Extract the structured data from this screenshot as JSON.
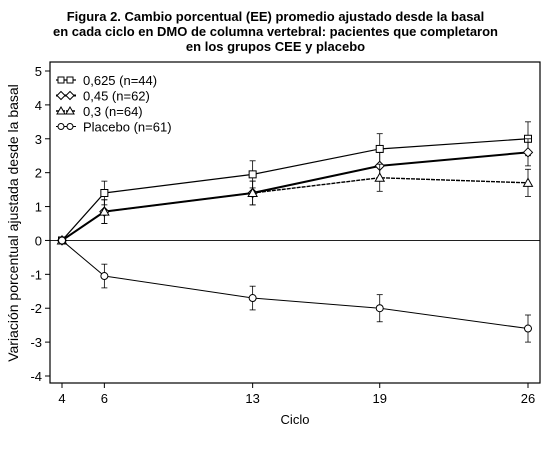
{
  "chart_data": {
    "type": "line",
    "title": [
      "Figura 2. Cambio porcentual (EE) promedio ajustado desde la basal",
      "en cada ciclo en DMO de columna vertebral: pacientes que completaron",
      "en los grupos CEE y placebo"
    ],
    "xlabel": "Ciclo",
    "ylabel": "Variación porcentual ajustada desde la basal",
    "x": [
      4,
      6,
      13,
      19,
      26
    ],
    "x_tick_labels": [
      "4",
      "6",
      "13",
      "19",
      "26"
    ],
    "ylim": [
      -4,
      5
    ],
    "y_ticks": [
      -4,
      -3,
      -2,
      -1,
      0,
      1,
      2,
      3,
      4,
      5
    ],
    "reference_line": 0,
    "grid": false,
    "legend_position": "top-left",
    "series": [
      {
        "name": "0,625 (n=44)",
        "marker": "square",
        "values": [
          0,
          1.4,
          1.95,
          2.7,
          3.0
        ],
        "errors": [
          0,
          0.35,
          0.4,
          0.45,
          0.5
        ]
      },
      {
        "name": "0,45 (n=62)",
        "marker": "diamond",
        "values": [
          0,
          0.85,
          1.4,
          2.2,
          2.6
        ],
        "errors": [
          0,
          0.35,
          0.35,
          0.4,
          0.4
        ]
      },
      {
        "name": "0,3 (n=64)",
        "marker": "triangle",
        "values": [
          0,
          0.85,
          1.4,
          1.85,
          1.7
        ],
        "errors": [
          0,
          0.35,
          0.35,
          0.4,
          0.4
        ]
      },
      {
        "name": "Placebo (n=61)",
        "marker": "circle",
        "values": [
          0,
          -1.05,
          -1.7,
          -2.0,
          -2.6
        ],
        "errors": [
          0,
          0.35,
          0.35,
          0.4,
          0.4
        ]
      }
    ],
    "colors": {
      "line": "#000000",
      "axis": "#000000"
    }
  }
}
